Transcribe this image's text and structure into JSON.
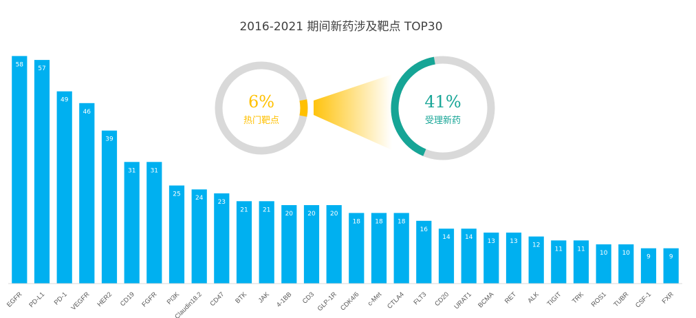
{
  "chart_data": {
    "type": "bar",
    "title": "2016-2021 期间新药涉及靶点 TOP30",
    "categories": [
      "EGFR",
      "PD-L1",
      "PD-1",
      "VEGFR",
      "HER2",
      "CD19",
      "FGFR",
      "PI3K",
      "Claudin18.2",
      "CD47",
      "BTK",
      "JAK",
      "4-1BB",
      "CD3",
      "GLP-1R",
      "CDK4/6",
      "c-Met",
      "CTLA4",
      "FLT3",
      "CD20",
      "URAT1",
      "BCMA",
      "RET",
      "ALK",
      "TIGIT",
      "TRK",
      "ROS1",
      "TUBR",
      "CSF-1",
      "FXR"
    ],
    "values": [
      58,
      57,
      49,
      46,
      39,
      31,
      31,
      25,
      24,
      23,
      21,
      21,
      20,
      20,
      20,
      18,
      18,
      18,
      16,
      14,
      14,
      13,
      13,
      12,
      11,
      11,
      10,
      10,
      9,
      9
    ],
    "ylim": [
      0,
      60
    ],
    "xlabel": "",
    "ylabel": "",
    "bar_color": "#00b0f0"
  },
  "donuts": {
    "hot_targets": {
      "value_text": "6%",
      "fraction": 0.06,
      "label": "热门靶点",
      "color": "#ffc000",
      "track_color": "#d9d9d9"
    },
    "accepted_drugs": {
      "value_text": "41%",
      "fraction": 0.41,
      "label": "受理新药",
      "color": "#16a596",
      "track_color": "#d9d9d9"
    }
  }
}
